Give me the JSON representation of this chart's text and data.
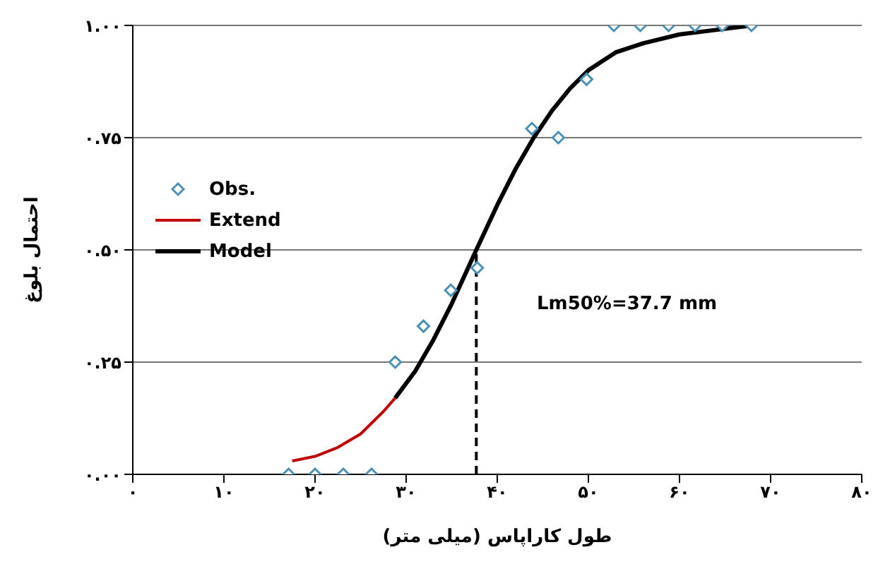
{
  "chart_data": {
    "type": "line",
    "xlabel": "طول کاراپاس (میلی متر)",
    "ylabel": "احتمال بلوغ",
    "xlim": [
      0,
      80
    ],
    "xticks": [
      {
        "value": 0,
        "label": "۰"
      },
      {
        "value": 10,
        "label": "۱۰"
      },
      {
        "value": 20,
        "label": "۲۰"
      },
      {
        "value": 30,
        "label": "۳۰"
      },
      {
        "value": 40,
        "label": "۴۰"
      },
      {
        "value": 50,
        "label": "۵۰"
      },
      {
        "value": 60,
        "label": "۶۰"
      },
      {
        "value": 70,
        "label": "۷۰"
      },
      {
        "value": 80,
        "label": "۸۰"
      }
    ],
    "ylim": [
      0,
      1
    ],
    "yticks": [
      {
        "value": 0,
        "label": "۰.۰۰"
      },
      {
        "value": 0.25,
        "label": "۰.۲۵"
      },
      {
        "value": 0.5,
        "label": "۰.۵۰"
      },
      {
        "value": 0.75,
        "label": "۰.۷۵"
      },
      {
        "value": 1,
        "label": "۱.۰۰"
      }
    ],
    "grid": "y",
    "legend": "left",
    "annotations": [
      "Lm50%=37.7 mm"
    ],
    "series": [
      {
        "name": "Obs.",
        "type": "scatter",
        "marker": "diamond",
        "color": "#4a90b8",
        "x": [
          17.1,
          20,
          23.1,
          26.2,
          28.8,
          31.9,
          34.9,
          37.8,
          43.8,
          46.7,
          49.8,
          52.8,
          55.7,
          58.8,
          61.7,
          64.7,
          67.9
        ],
        "values": [
          0,
          0,
          0,
          0,
          0.25,
          0.33,
          0.41,
          0.46,
          0.77,
          0.75,
          0.88,
          1,
          1,
          1,
          1,
          1,
          1
        ]
      },
      {
        "name": "Extend",
        "marker": "none",
        "color": "#c00000",
        "x": [
          17.5,
          20,
          22.5,
          25,
          27.5,
          28.8
        ],
        "values": [
          0.03,
          0.04,
          0.06,
          0.09,
          0.14,
          0.17
        ]
      },
      {
        "name": "Model",
        "marker": "none",
        "color": "#000000",
        "x": [
          28.8,
          31,
          33,
          35,
          37.7,
          40,
          42,
          44,
          46,
          48,
          50,
          53,
          56,
          60,
          64,
          68
        ],
        "values": [
          0.17,
          0.23,
          0.3,
          0.38,
          0.5,
          0.6,
          0.68,
          0.75,
          0.81,
          0.86,
          0.9,
          0.94,
          0.96,
          0.98,
          0.99,
          1
        ]
      },
      {
        "marker": "none",
        "line_style": "dashed",
        "color": "#000000",
        "x": [
          37.7,
          37.7
        ],
        "values": [
          0,
          0.5
        ]
      }
    ]
  }
}
